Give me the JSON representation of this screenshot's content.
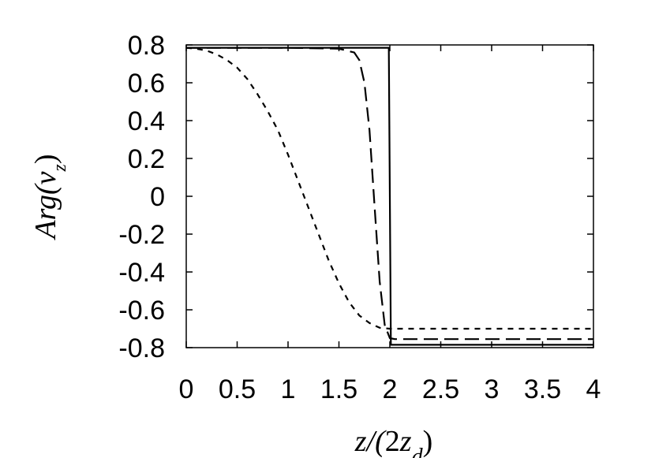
{
  "chart_data": {
    "type": "line",
    "title": "",
    "xlabel": "z/(2z_d)",
    "ylabel": "Arg(v_z)",
    "xlim": [
      0,
      4
    ],
    "ylim": [
      -0.8,
      0.8
    ],
    "x_ticks": [
      "0",
      "0.5",
      "1",
      "1.5",
      "2",
      "2.5",
      "3",
      "3.5",
      "4"
    ],
    "y_ticks": [
      "0.8",
      "0.6",
      "0.4",
      "0.2",
      "0",
      "-0.2",
      "-0.4",
      "-0.6",
      "-0.8"
    ],
    "grid": false,
    "legend": "none",
    "series": [
      {
        "style": "solid",
        "color": "#000000",
        "x": [
          0,
          0.5,
          1,
          1.5,
          1.99,
          2.0,
          2.01,
          2.5,
          3,
          3.5,
          4
        ],
        "y": [
          0.785,
          0.785,
          0.785,
          0.785,
          0.785,
          0.0,
          -0.785,
          -0.785,
          -0.785,
          -0.785,
          -0.785
        ]
      },
      {
        "style": "long-dash",
        "color": "#000000",
        "x": [
          0,
          0.5,
          1,
          1.5,
          1.65,
          1.7,
          1.75,
          1.8,
          1.85,
          1.9,
          1.95,
          2.0,
          2.05,
          2.5,
          3,
          3.5,
          4
        ],
        "y": [
          0.785,
          0.785,
          0.785,
          0.78,
          0.76,
          0.72,
          0.6,
          0.35,
          -0.05,
          -0.45,
          -0.68,
          -0.75,
          -0.755,
          -0.755,
          -0.755,
          -0.755,
          -0.755
        ]
      },
      {
        "style": "short-dash",
        "color": "#000000",
        "x": [
          0,
          0.1,
          0.2,
          0.3,
          0.4,
          0.5,
          0.6,
          0.7,
          0.8,
          0.9,
          1.0,
          1.1,
          1.2,
          1.3,
          1.4,
          1.5,
          1.6,
          1.7,
          1.8,
          1.9,
          2.0,
          2.5,
          3,
          3.5,
          4
        ],
        "y": [
          0.785,
          0.78,
          0.77,
          0.75,
          0.72,
          0.68,
          0.62,
          0.54,
          0.45,
          0.35,
          0.22,
          0.08,
          -0.06,
          -0.2,
          -0.34,
          -0.46,
          -0.56,
          -0.63,
          -0.67,
          -0.695,
          -0.7,
          -0.7,
          -0.7,
          -0.7,
          -0.7
        ]
      }
    ]
  }
}
